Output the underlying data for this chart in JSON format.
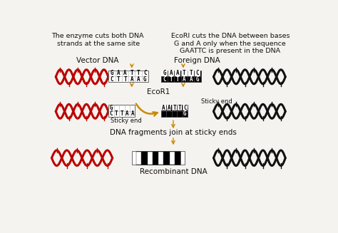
{
  "bg_color": "#f5f3ef",
  "title_left": "The enzyme cuts both DNA\n strands at the same site",
  "title_right": "EcoRI cuts the DNA between bases\nG and A only when the sequence\nGAATTC is present in the DNA",
  "label_vector": "Vector DNA",
  "label_foreign": "Foreign DNA",
  "label_ecor1": "EcoR1",
  "label_sticky_left": "Sticky end",
  "label_sticky_right": "Sticky end",
  "label_join": "DNA fragments join at sticky ends",
  "label_recombinant": "Recombinant DNA",
  "seq_top": [
    "G",
    "A",
    "A",
    "T",
    "T",
    "C"
  ],
  "seq_bot": [
    "C",
    "T",
    "T",
    "A",
    "A",
    "G"
  ],
  "red_dna_color": "#bb0000",
  "black_dna_color": "#111111",
  "arrow_color": "#cc8800",
  "text_color": "#111111",
  "font_size_title": 6.8,
  "font_size_label": 7.5,
  "font_size_seq": 5.5
}
